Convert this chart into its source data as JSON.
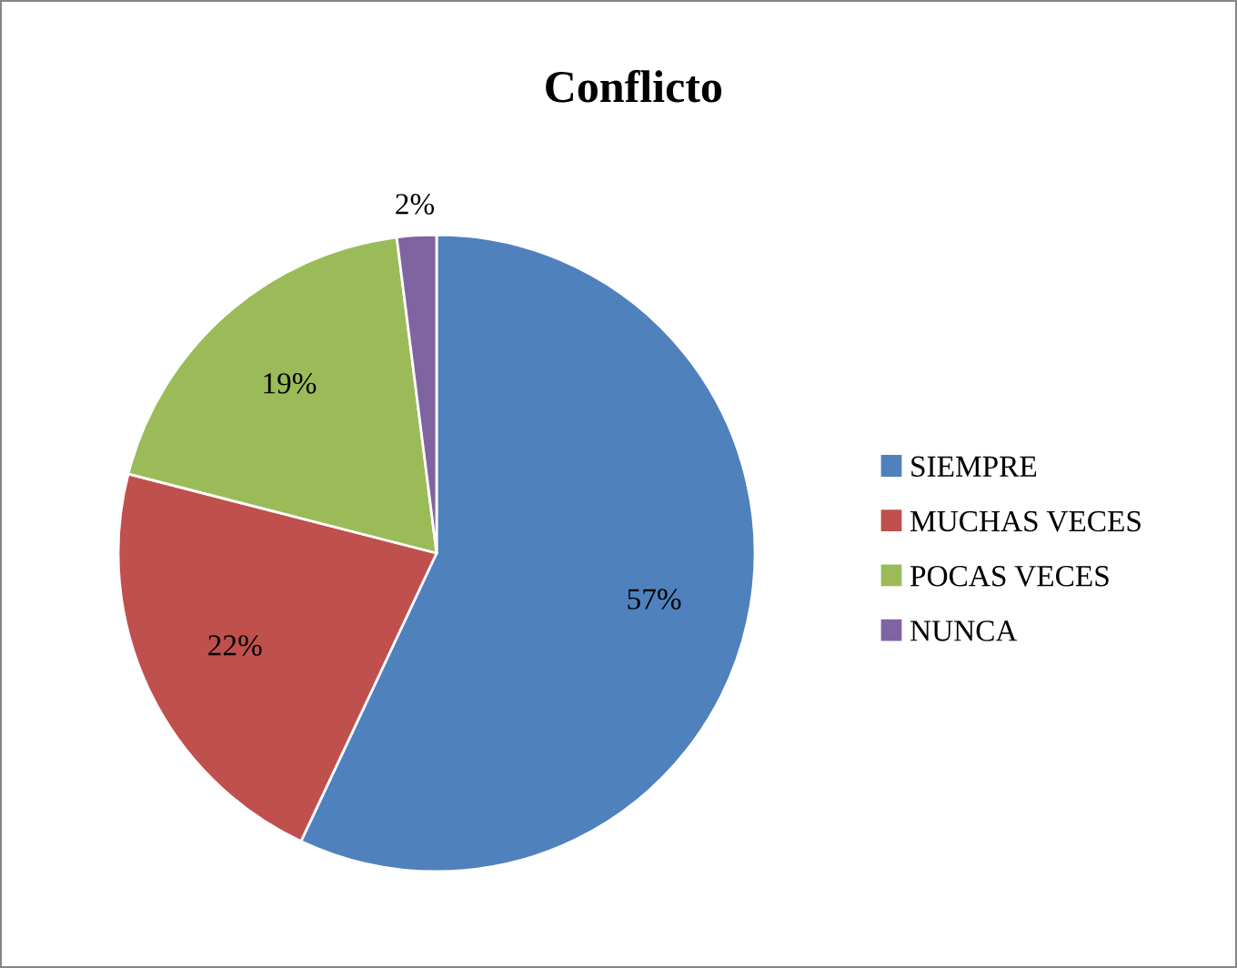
{
  "chart_data": {
    "type": "pie",
    "title": "Conflicto",
    "categories": [
      "SIEMPRE",
      "MUCHAS VECES",
      "POCAS VECES",
      "NUNCA"
    ],
    "values": [
      57,
      22,
      19,
      2
    ],
    "colors": [
      "#4f81bd",
      "#c0504d",
      "#9bbb59",
      "#8064a2"
    ],
    "value_labels": [
      "57%",
      "22%",
      "19%",
      "2%"
    ],
    "legend": "right"
  }
}
